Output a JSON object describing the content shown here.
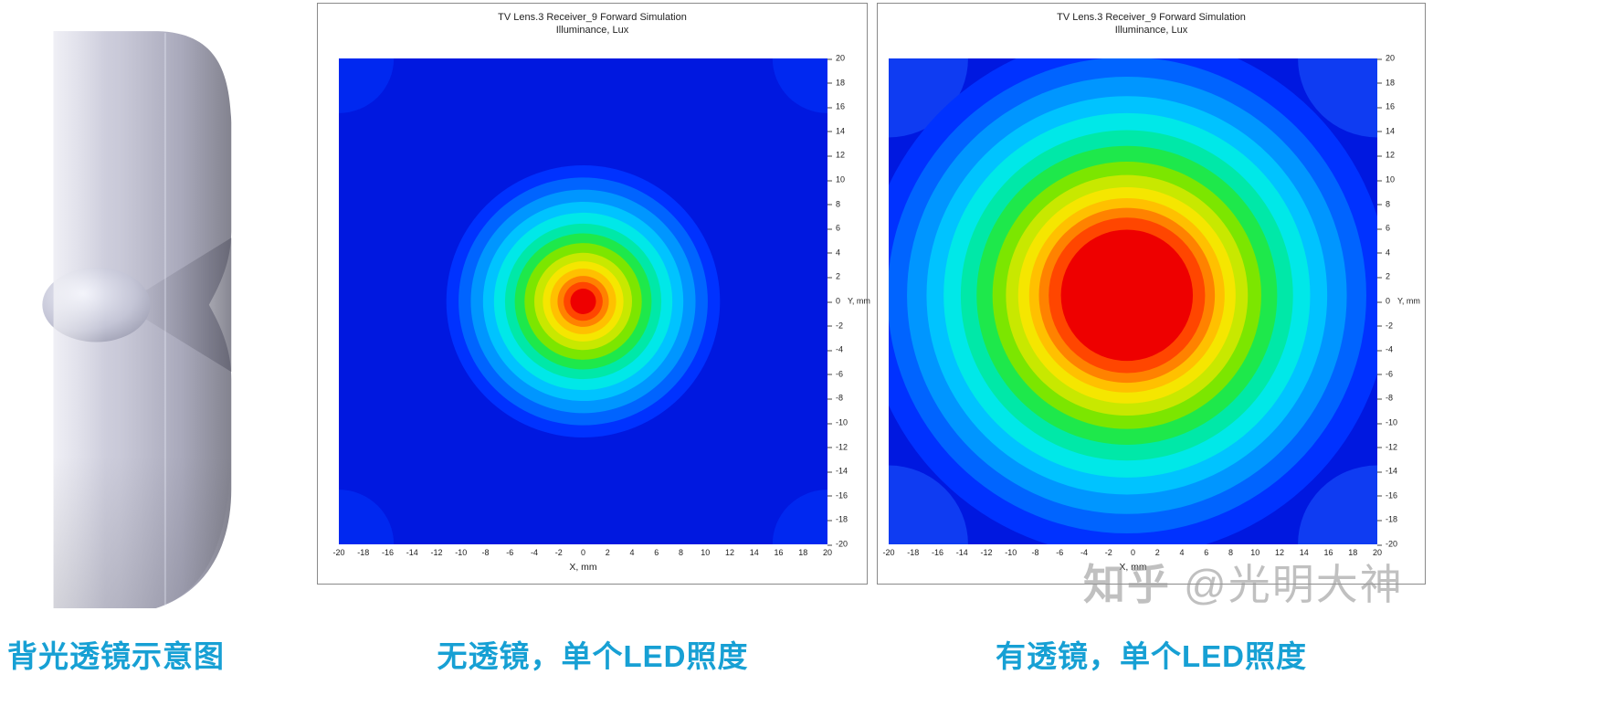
{
  "colors": {
    "accent": "#17a0d4",
    "watermark": "#9a9a9a",
    "panel_border": "#8a8a8a"
  },
  "lens_figure": {
    "caption": "背光透镜示意图"
  },
  "captions": {
    "no_lens": "无透镜，单个LED照度",
    "with_lens": "有透镜，单个LED照度"
  },
  "watermark": {
    "brand": "知乎",
    "handle": "@光明大神"
  },
  "chart_data": [
    {
      "type": "contour",
      "title": "TV Lens.3 Receiver_9 Forward Simulation",
      "subtitle": "Illuminance, Lux",
      "xlabel": "X, mm",
      "ylabel": "Y, mm",
      "xlim": [
        -20,
        20
      ],
      "ylim": [
        -20,
        20
      ],
      "x_ticks": [
        -20,
        -18,
        -16,
        -14,
        -12,
        -10,
        -8,
        -6,
        -4,
        -2,
        0,
        2,
        4,
        6,
        8,
        10,
        12,
        14,
        16,
        18,
        20
      ],
      "y_ticks": [
        -20,
        -18,
        -16,
        -14,
        -12,
        -10,
        -8,
        -6,
        -4,
        -2,
        0,
        2,
        4,
        6,
        8,
        10,
        12,
        14,
        16,
        18,
        20
      ],
      "grid": false,
      "legend_position": "none",
      "background_color": "#0018e0",
      "center": [
        0,
        0
      ],
      "corner_patches": {
        "color": "#0028f0",
        "radius_mm": 4.5
      },
      "levels_outer_to_inner": [
        {
          "radius_mm": 11.2,
          "color": "#0032ff"
        },
        {
          "radius_mm": 10.2,
          "color": "#0064ff"
        },
        {
          "radius_mm": 9.2,
          "color": "#0096ff"
        },
        {
          "radius_mm": 8.2,
          "color": "#00c3ff"
        },
        {
          "radius_mm": 7.3,
          "color": "#00e8e8"
        },
        {
          "radius_mm": 6.4,
          "color": "#00e8a8"
        },
        {
          "radius_mm": 5.6,
          "color": "#1ee84b"
        },
        {
          "radius_mm": 4.8,
          "color": "#7ce600"
        },
        {
          "radius_mm": 4.0,
          "color": "#c8e800"
        },
        {
          "radius_mm": 3.3,
          "color": "#f5e600"
        },
        {
          "radius_mm": 2.7,
          "color": "#ffc000"
        },
        {
          "radius_mm": 2.1,
          "color": "#ff8200"
        },
        {
          "radius_mm": 1.6,
          "color": "#ff4600"
        },
        {
          "radius_mm": 1.05,
          "color": "#ee0000"
        }
      ]
    },
    {
      "type": "contour",
      "title": "TV Lens.3 Receiver_9 Forward Simulation",
      "subtitle": "Illuminance, Lux",
      "xlabel": "X, mm",
      "ylabel": "Y, mm",
      "xlim": [
        -20,
        20
      ],
      "ylim": [
        -20,
        20
      ],
      "x_ticks": [
        -20,
        -18,
        -16,
        -14,
        -12,
        -10,
        -8,
        -6,
        -4,
        -2,
        0,
        2,
        4,
        6,
        8,
        10,
        12,
        14,
        16,
        18,
        20
      ],
      "y_ticks": [
        -20,
        -18,
        -16,
        -14,
        -12,
        -10,
        -8,
        -6,
        -4,
        -2,
        0,
        2,
        4,
        6,
        8,
        10,
        12,
        14,
        16,
        18,
        20
      ],
      "grid": false,
      "legend_position": "none",
      "background_color": "#0018e0",
      "center": [
        -0.5,
        0.5
      ],
      "corner_patches": {
        "color": "#0f3cf2",
        "radius_mm": 6.5
      },
      "levels_outer_to_inner": [
        {
          "radius_mm": 21.5,
          "color": "#0032ff"
        },
        {
          "radius_mm": 19.6,
          "color": "#0064ff"
        },
        {
          "radius_mm": 18.0,
          "color": "#0096ff"
        },
        {
          "radius_mm": 16.4,
          "color": "#00c3ff"
        },
        {
          "radius_mm": 15.0,
          "color": "#00e8e8"
        },
        {
          "radius_mm": 13.6,
          "color": "#00e8a8"
        },
        {
          "radius_mm": 12.3,
          "color": "#1ee84b"
        },
        {
          "radius_mm": 11.0,
          "color": "#7ce600"
        },
        {
          "radius_mm": 9.9,
          "color": "#c8e800"
        },
        {
          "radius_mm": 8.9,
          "color": "#f5e600"
        },
        {
          "radius_mm": 8.0,
          "color": "#ffc000"
        },
        {
          "radius_mm": 7.2,
          "color": "#ff8200"
        },
        {
          "radius_mm": 6.4,
          "color": "#ff4600"
        },
        {
          "radius_mm": 5.4,
          "color": "#ee0000"
        }
      ]
    }
  ]
}
